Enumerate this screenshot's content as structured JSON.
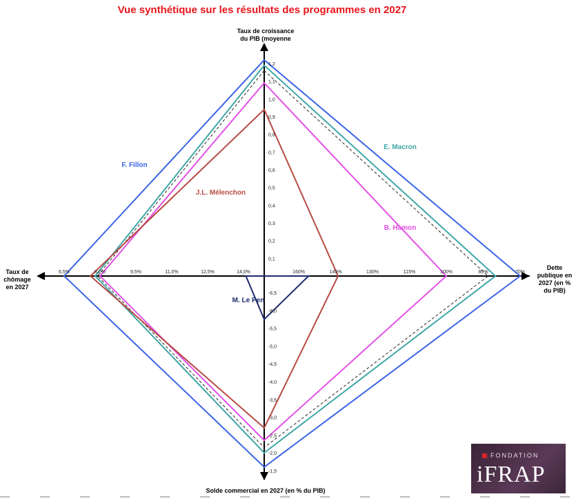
{
  "title": "Vue synthétique sur les résultats des programmes en 2027",
  "logo": {
    "top": "FONDATION",
    "main": "iFRAP"
  },
  "chart_data": {
    "type": "radar",
    "title": "Vue synthétique sur les résultats des programmes en 2027",
    "axes": {
      "top": {
        "label": [
          "Taux de croissance",
          "du PIB (moyenne"
        ],
        "range": [
          0,
          1.2
        ],
        "ticks": [
          "0,1",
          "0,2",
          "0,3",
          "0,4",
          "0,5",
          "0,6",
          "0,7",
          "0,8",
          "0,9",
          "1,0",
          "1,1",
          "1,2"
        ]
      },
      "right": {
        "label": [
          "Dette",
          "publique en",
          "2027 (en %",
          "du PIB)"
        ],
        "range": [
          160,
          70
        ],
        "ticks": [
          "160%",
          "145%",
          "130%",
          "115%",
          "100%",
          "85%",
          "70%"
        ]
      },
      "bottom": {
        "label": [
          "Solde commercial en 2027 (en % du PIB)"
        ],
        "range": [
          -6.5,
          -1.5
        ],
        "ticks": [
          "-6,5",
          "-6,0",
          "-5,5",
          "-5,0",
          "-4,5",
          "-4,0",
          "-3,5",
          "-3,0",
          "-2,5",
          "-2,0",
          "-1,5"
        ]
      },
      "left": {
        "label": [
          "Taux de",
          "chômage",
          "en 2027"
        ],
        "range": [
          14.0,
          6.5
        ],
        "ticks": [
          "14,0%",
          "12,5%",
          "11,0%",
          "9,5%",
          "8,0%",
          "6,5%"
        ]
      }
    },
    "series": [
      {
        "name": "F. Fillon",
        "color": "#3a63e6",
        "values": {
          "top": 1.22,
          "right": 70,
          "bottom": -1.6,
          "left": 6.5
        }
      },
      {
        "name": "E. Macron",
        "color": "#3fa6a6",
        "values": {
          "top": 1.19,
          "right": 80,
          "bottom": -2.0,
          "left": 7.8
        }
      },
      {
        "name": "",
        "color": "#222222",
        "dashed": true,
        "values": {
          "top": 1.16,
          "right": 83,
          "bottom": -2.15,
          "left": 7.9
        }
      },
      {
        "name": "B. Hamon",
        "color": "#e44fe6",
        "values": {
          "top": 1.09,
          "right": 100,
          "bottom": -2.35,
          "left": 8.0
        }
      },
      {
        "name": "J.L. Mélenchon",
        "color": "#b84a42",
        "values": {
          "top": 0.94,
          "right": 144,
          "bottom": -2.7,
          "left": 7.6
        }
      },
      {
        "name": "M. Le Pen",
        "color": "#1d2a6b",
        "values": {
          "top": 0.0,
          "right": 156,
          "bottom": -5.75,
          "left": 14.1
        }
      }
    ],
    "grid": false,
    "legend": "labels placed beside each polygon"
  }
}
